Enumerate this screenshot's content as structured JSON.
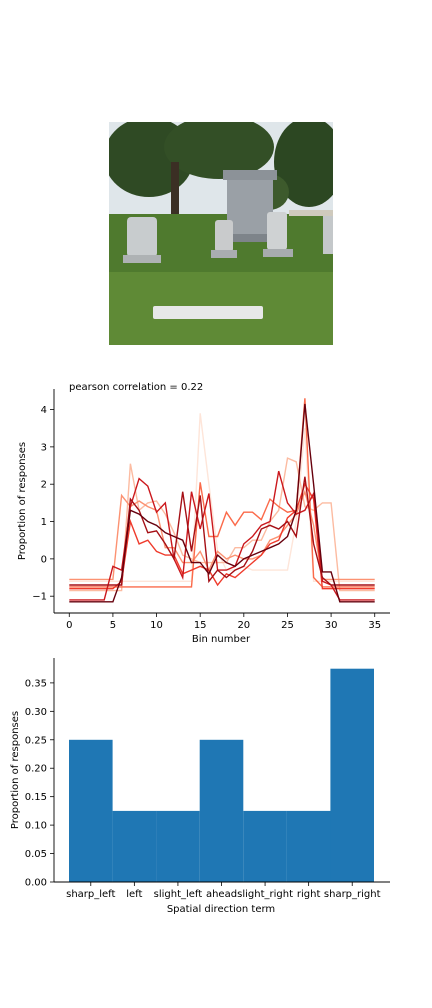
{
  "photo": {
    "description_icon": "cemetery-photo"
  },
  "chart_data": [
    {
      "type": "line",
      "title": "pearson correlation = 0.22",
      "xlabel": "Bin number",
      "ylabel": "Proportion of responses",
      "xlim": [
        -1.75,
        36.75
      ],
      "ylim": [
        -1.45,
        4.55
      ],
      "xticks": [
        0,
        5,
        10,
        15,
        20,
        25,
        30,
        35
      ],
      "yticks": [
        -1,
        0,
        1,
        2,
        3,
        4
      ],
      "grid": false,
      "x": [
        0,
        1,
        2,
        3,
        4,
        5,
        6,
        7,
        8,
        9,
        10,
        11,
        12,
        13,
        14,
        15,
        16,
        17,
        18,
        19,
        20,
        21,
        22,
        23,
        24,
        25,
        26,
        27,
        28,
        29,
        30,
        31,
        32,
        33,
        34,
        35
      ],
      "series": [
        {
          "color": "#fee5d9",
          "values": [
            -0.6,
            -0.6,
            -0.6,
            -0.6,
            -0.6,
            -0.6,
            -0.6,
            -0.6,
            -0.6,
            -0.6,
            -0.6,
            -0.6,
            -0.6,
            -0.6,
            -0.6,
            3.9,
            2.0,
            0.2,
            -0.3,
            -0.3,
            -0.2,
            -0.3,
            -0.3,
            -0.3,
            -0.3,
            -0.3,
            1.0,
            3.5,
            -0.6,
            -0.6,
            -0.6,
            -0.6,
            -0.6,
            -0.6,
            -0.6,
            -0.6
          ]
        },
        {
          "color": "#fcbba1",
          "values": [
            -0.85,
            -0.85,
            -0.85,
            -0.85,
            -0.85,
            -0.85,
            -0.85,
            2.55,
            1.3,
            1.5,
            1.55,
            1.2,
            0.7,
            0.1,
            0.0,
            -0.1,
            -0.1,
            -0.1,
            -0.1,
            0.3,
            0.3,
            0.5,
            0.5,
            1.0,
            1.3,
            2.7,
            2.6,
            1.4,
            1.3,
            1.5,
            1.5,
            -0.85,
            -0.85,
            -0.85,
            -0.85,
            -0.85
          ]
        },
        {
          "color": "#fc9272",
          "values": [
            -0.55,
            -0.55,
            -0.55,
            -0.55,
            -0.55,
            -0.55,
            1.7,
            1.4,
            1.55,
            1.4,
            1.3,
            0.3,
            0.3,
            -0.1,
            -0.1,
            0.2,
            -0.3,
            0.2,
            0.0,
            0.1,
            0.0,
            0.0,
            0.1,
            0.5,
            0.6,
            0.9,
            1.2,
            1.8,
            0.9,
            -0.55,
            -0.55,
            -0.55,
            -0.55,
            -0.55,
            -0.55,
            -0.55
          ]
        },
        {
          "color": "#fb6a4a",
          "values": [
            -0.75,
            -0.75,
            -0.75,
            -0.75,
            -0.75,
            -0.75,
            -0.75,
            -0.75,
            -0.75,
            -0.75,
            -0.75,
            -0.75,
            -0.75,
            -0.75,
            -0.75,
            2.05,
            0.6,
            0.6,
            1.25,
            0.9,
            1.25,
            1.25,
            1.05,
            1.6,
            1.4,
            1.25,
            1.3,
            4.3,
            -0.5,
            -0.75,
            -0.75,
            -0.75,
            -0.75,
            -0.75,
            -0.75,
            -0.75
          ]
        },
        {
          "color": "#ef3b2c",
          "values": [
            -0.8,
            -0.8,
            -0.8,
            -0.8,
            -0.8,
            -0.8,
            -0.6,
            1.0,
            0.4,
            0.5,
            0.2,
            0.1,
            0.1,
            -0.4,
            -0.3,
            -0.2,
            -0.3,
            -0.7,
            -0.4,
            -0.5,
            -0.3,
            -0.1,
            0.1,
            0.4,
            0.5,
            1.1,
            1.3,
            2.0,
            1.6,
            -0.8,
            -0.8,
            -0.8,
            -0.8,
            -0.8,
            -0.8,
            -0.8
          ]
        },
        {
          "color": "#cb181d",
          "values": [
            -1.1,
            -1.1,
            -1.1,
            -1.1,
            -1.1,
            -0.2,
            -0.3,
            1.4,
            2.15,
            1.95,
            1.25,
            1.5,
            0.0,
            -0.5,
            1.8,
            0.8,
            1.75,
            -0.3,
            -0.3,
            -0.2,
            0.4,
            0.6,
            0.9,
            1.0,
            2.35,
            1.5,
            1.2,
            1.3,
            1.75,
            -0.6,
            -0.7,
            -1.1,
            -1.1,
            -1.1,
            -1.1,
            -1.1
          ]
        },
        {
          "color": "#a50f15",
          "values": [
            -0.7,
            -0.7,
            -0.7,
            -0.7,
            -0.7,
            -0.7,
            -0.7,
            1.6,
            1.3,
            0.7,
            0.75,
            0.4,
            0.0,
            1.8,
            0.2,
            1.7,
            -0.6,
            -0.3,
            -0.5,
            -0.3,
            -0.2,
            0.2,
            0.8,
            0.9,
            0.8,
            1.0,
            0.6,
            2.2,
            0.4,
            -0.5,
            -0.7,
            -0.7,
            -0.7,
            -0.7,
            -0.7,
            -0.7
          ]
        },
        {
          "color": "#67000d",
          "values": [
            -1.15,
            -1.15,
            -1.15,
            -1.15,
            -1.15,
            -1.15,
            -0.5,
            1.3,
            1.2,
            1.0,
            0.9,
            0.7,
            0.6,
            0.5,
            -0.1,
            -0.1,
            -0.4,
            0.1,
            -0.1,
            -0.2,
            0.0,
            0.1,
            0.2,
            0.3,
            0.4,
            0.6,
            1.3,
            4.15,
            2.0,
            -0.35,
            -0.35,
            -1.15,
            -1.15,
            -1.15,
            -1.15,
            -1.15
          ]
        }
      ]
    },
    {
      "type": "bar",
      "title": "",
      "xlabel": "Spatial direction term",
      "ylabel": "Proportion of responses",
      "categories": [
        "sharp_left",
        "left",
        "slight_left",
        "ahead",
        "slight_right",
        "right",
        "sharp_right"
      ],
      "values": [
        0.25,
        0.125,
        0.125,
        0.25,
        0.125,
        0.125,
        0.375
      ],
      "ylim": [
        0,
        0.39375
      ],
      "yticks": [
        0.0,
        0.05,
        0.1,
        0.15,
        0.2,
        0.25,
        0.3,
        0.35
      ],
      "ytick_labels": [
        "0.00",
        "0.05",
        "0.10",
        "0.15",
        "0.20",
        "0.25",
        "0.30",
        "0.35"
      ],
      "bar_color": "#1f77b4",
      "grid": false
    }
  ]
}
